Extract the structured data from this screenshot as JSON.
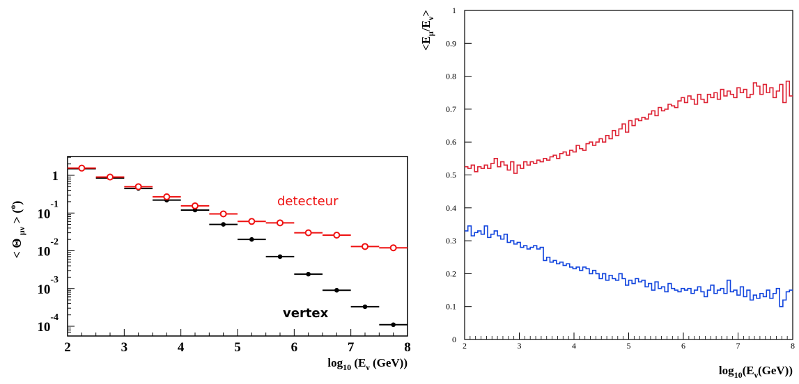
{
  "chart_data": [
    {
      "type": "scatter",
      "y_scale": "log",
      "xlim": [
        2,
        8
      ],
      "ylim": [
        7e-05,
        3.5
      ],
      "x_ticks": [
        "2",
        "3",
        "4",
        "5",
        "6",
        "7",
        "8"
      ],
      "y_ticks": [
        {
          "base": "1",
          "exp": ""
        },
        {
          "base": "10",
          "exp": "-1"
        },
        {
          "base": "10",
          "exp": "-2"
        },
        {
          "base": "10",
          "exp": "-3"
        },
        {
          "base": "10",
          "exp": "-4"
        }
      ],
      "xlabel": {
        "pre": "log",
        "sub1": "10",
        "mid": " (E",
        "sub2": "ν",
        "post": " (GeV))"
      },
      "ylabel": {
        "pre": "< Θ ",
        "sub": "μν",
        "mid": " > (",
        "sup": "o",
        "post": ")"
      },
      "annotations": {
        "detector": "detecteur",
        "vertex": "vertex"
      },
      "colors": {
        "detector": "#ee1111",
        "vertex": "#000000"
      },
      "series": [
        {
          "name": "detecteur",
          "x": [
            2.25,
            2.75,
            3.25,
            3.75,
            4.25,
            4.75,
            5.25,
            5.75,
            6.25,
            6.75,
            7.25,
            7.75
          ],
          "values": [
            1.55,
            0.9,
            0.5,
            0.27,
            0.155,
            0.095,
            0.06,
            0.055,
            0.03,
            0.026,
            0.013,
            0.012
          ]
        },
        {
          "name": "vertex",
          "x": [
            2.25,
            2.75,
            3.25,
            3.75,
            4.25,
            4.75,
            5.25,
            5.75,
            6.25,
            6.75,
            7.25,
            7.75
          ],
          "values": [
            1.5,
            0.85,
            0.45,
            0.22,
            0.12,
            0.05,
            0.02,
            0.007,
            0.0024,
            0.0009,
            0.00033,
            0.00011
          ]
        }
      ]
    },
    {
      "type": "line",
      "step": true,
      "xlim": [
        2,
        8
      ],
      "ylim": [
        0,
        1
      ],
      "x_ticks": [
        "2",
        "3",
        "4",
        "5",
        "6",
        "7",
        "8"
      ],
      "y_ticks": [
        "0",
        "0.1",
        "0.2",
        "0.3",
        "0.4",
        "0.5",
        "0.6",
        "0.7",
        "0.8",
        "0.9",
        "1"
      ],
      "xlabel": {
        "pre": "log",
        "sub1": "10",
        "mid": "(E",
        "sub2": "ν",
        "post": "(GeV))"
      },
      "ylabel": {
        "pre": "<E",
        "sub1": "μ",
        "mid": "/E",
        "sub2": "ν",
        "post": ">"
      },
      "colors": {
        "upper": "#dd2233",
        "lower": "#1144dd"
      },
      "series": [
        {
          "name": "upper",
          "x_start": 2.0,
          "bin_width": 0.06,
          "values": [
            0.525,
            0.52,
            0.53,
            0.51,
            0.525,
            0.52,
            0.53,
            0.52,
            0.535,
            0.55,
            0.525,
            0.54,
            0.53,
            0.515,
            0.54,
            0.505,
            0.53,
            0.52,
            0.54,
            0.53,
            0.54,
            0.535,
            0.545,
            0.54,
            0.55,
            0.545,
            0.555,
            0.56,
            0.55,
            0.565,
            0.57,
            0.56,
            0.575,
            0.57,
            0.59,
            0.58,
            0.575,
            0.595,
            0.6,
            0.59,
            0.6,
            0.61,
            0.6,
            0.62,
            0.61,
            0.635,
            0.62,
            0.64,
            0.655,
            0.63,
            0.665,
            0.65,
            0.67,
            0.665,
            0.675,
            0.67,
            0.685,
            0.695,
            0.68,
            0.705,
            0.695,
            0.7,
            0.715,
            0.71,
            0.705,
            0.725,
            0.735,
            0.72,
            0.74,
            0.73,
            0.715,
            0.745,
            0.73,
            0.72,
            0.745,
            0.735,
            0.75,
            0.73,
            0.76,
            0.74,
            0.755,
            0.745,
            0.735,
            0.765,
            0.75,
            0.76,
            0.735,
            0.745,
            0.78,
            0.77,
            0.745,
            0.775,
            0.75,
            0.765,
            0.735,
            0.755,
            0.775,
            0.72,
            0.785,
            0.74
          ]
        },
        {
          "name": "lower",
          "x_start": 2.0,
          "bin_width": 0.06,
          "values": [
            0.33,
            0.345,
            0.315,
            0.325,
            0.33,
            0.32,
            0.345,
            0.31,
            0.32,
            0.33,
            0.315,
            0.305,
            0.32,
            0.295,
            0.3,
            0.29,
            0.295,
            0.28,
            0.285,
            0.275,
            0.28,
            0.285,
            0.275,
            0.28,
            0.24,
            0.25,
            0.235,
            0.24,
            0.23,
            0.235,
            0.225,
            0.23,
            0.22,
            0.215,
            0.22,
            0.21,
            0.22,
            0.215,
            0.2,
            0.21,
            0.2,
            0.185,
            0.2,
            0.18,
            0.195,
            0.185,
            0.18,
            0.2,
            0.185,
            0.165,
            0.18,
            0.17,
            0.185,
            0.175,
            0.18,
            0.16,
            0.17,
            0.15,
            0.175,
            0.155,
            0.16,
            0.145,
            0.17,
            0.155,
            0.15,
            0.145,
            0.155,
            0.15,
            0.155,
            0.14,
            0.15,
            0.16,
            0.145,
            0.13,
            0.15,
            0.165,
            0.14,
            0.15,
            0.155,
            0.14,
            0.18,
            0.145,
            0.15,
            0.135,
            0.16,
            0.13,
            0.15,
            0.12,
            0.135,
            0.125,
            0.14,
            0.13,
            0.15,
            0.125,
            0.14,
            0.155,
            0.1,
            0.12,
            0.145,
            0.15
          ]
        }
      ]
    }
  ]
}
